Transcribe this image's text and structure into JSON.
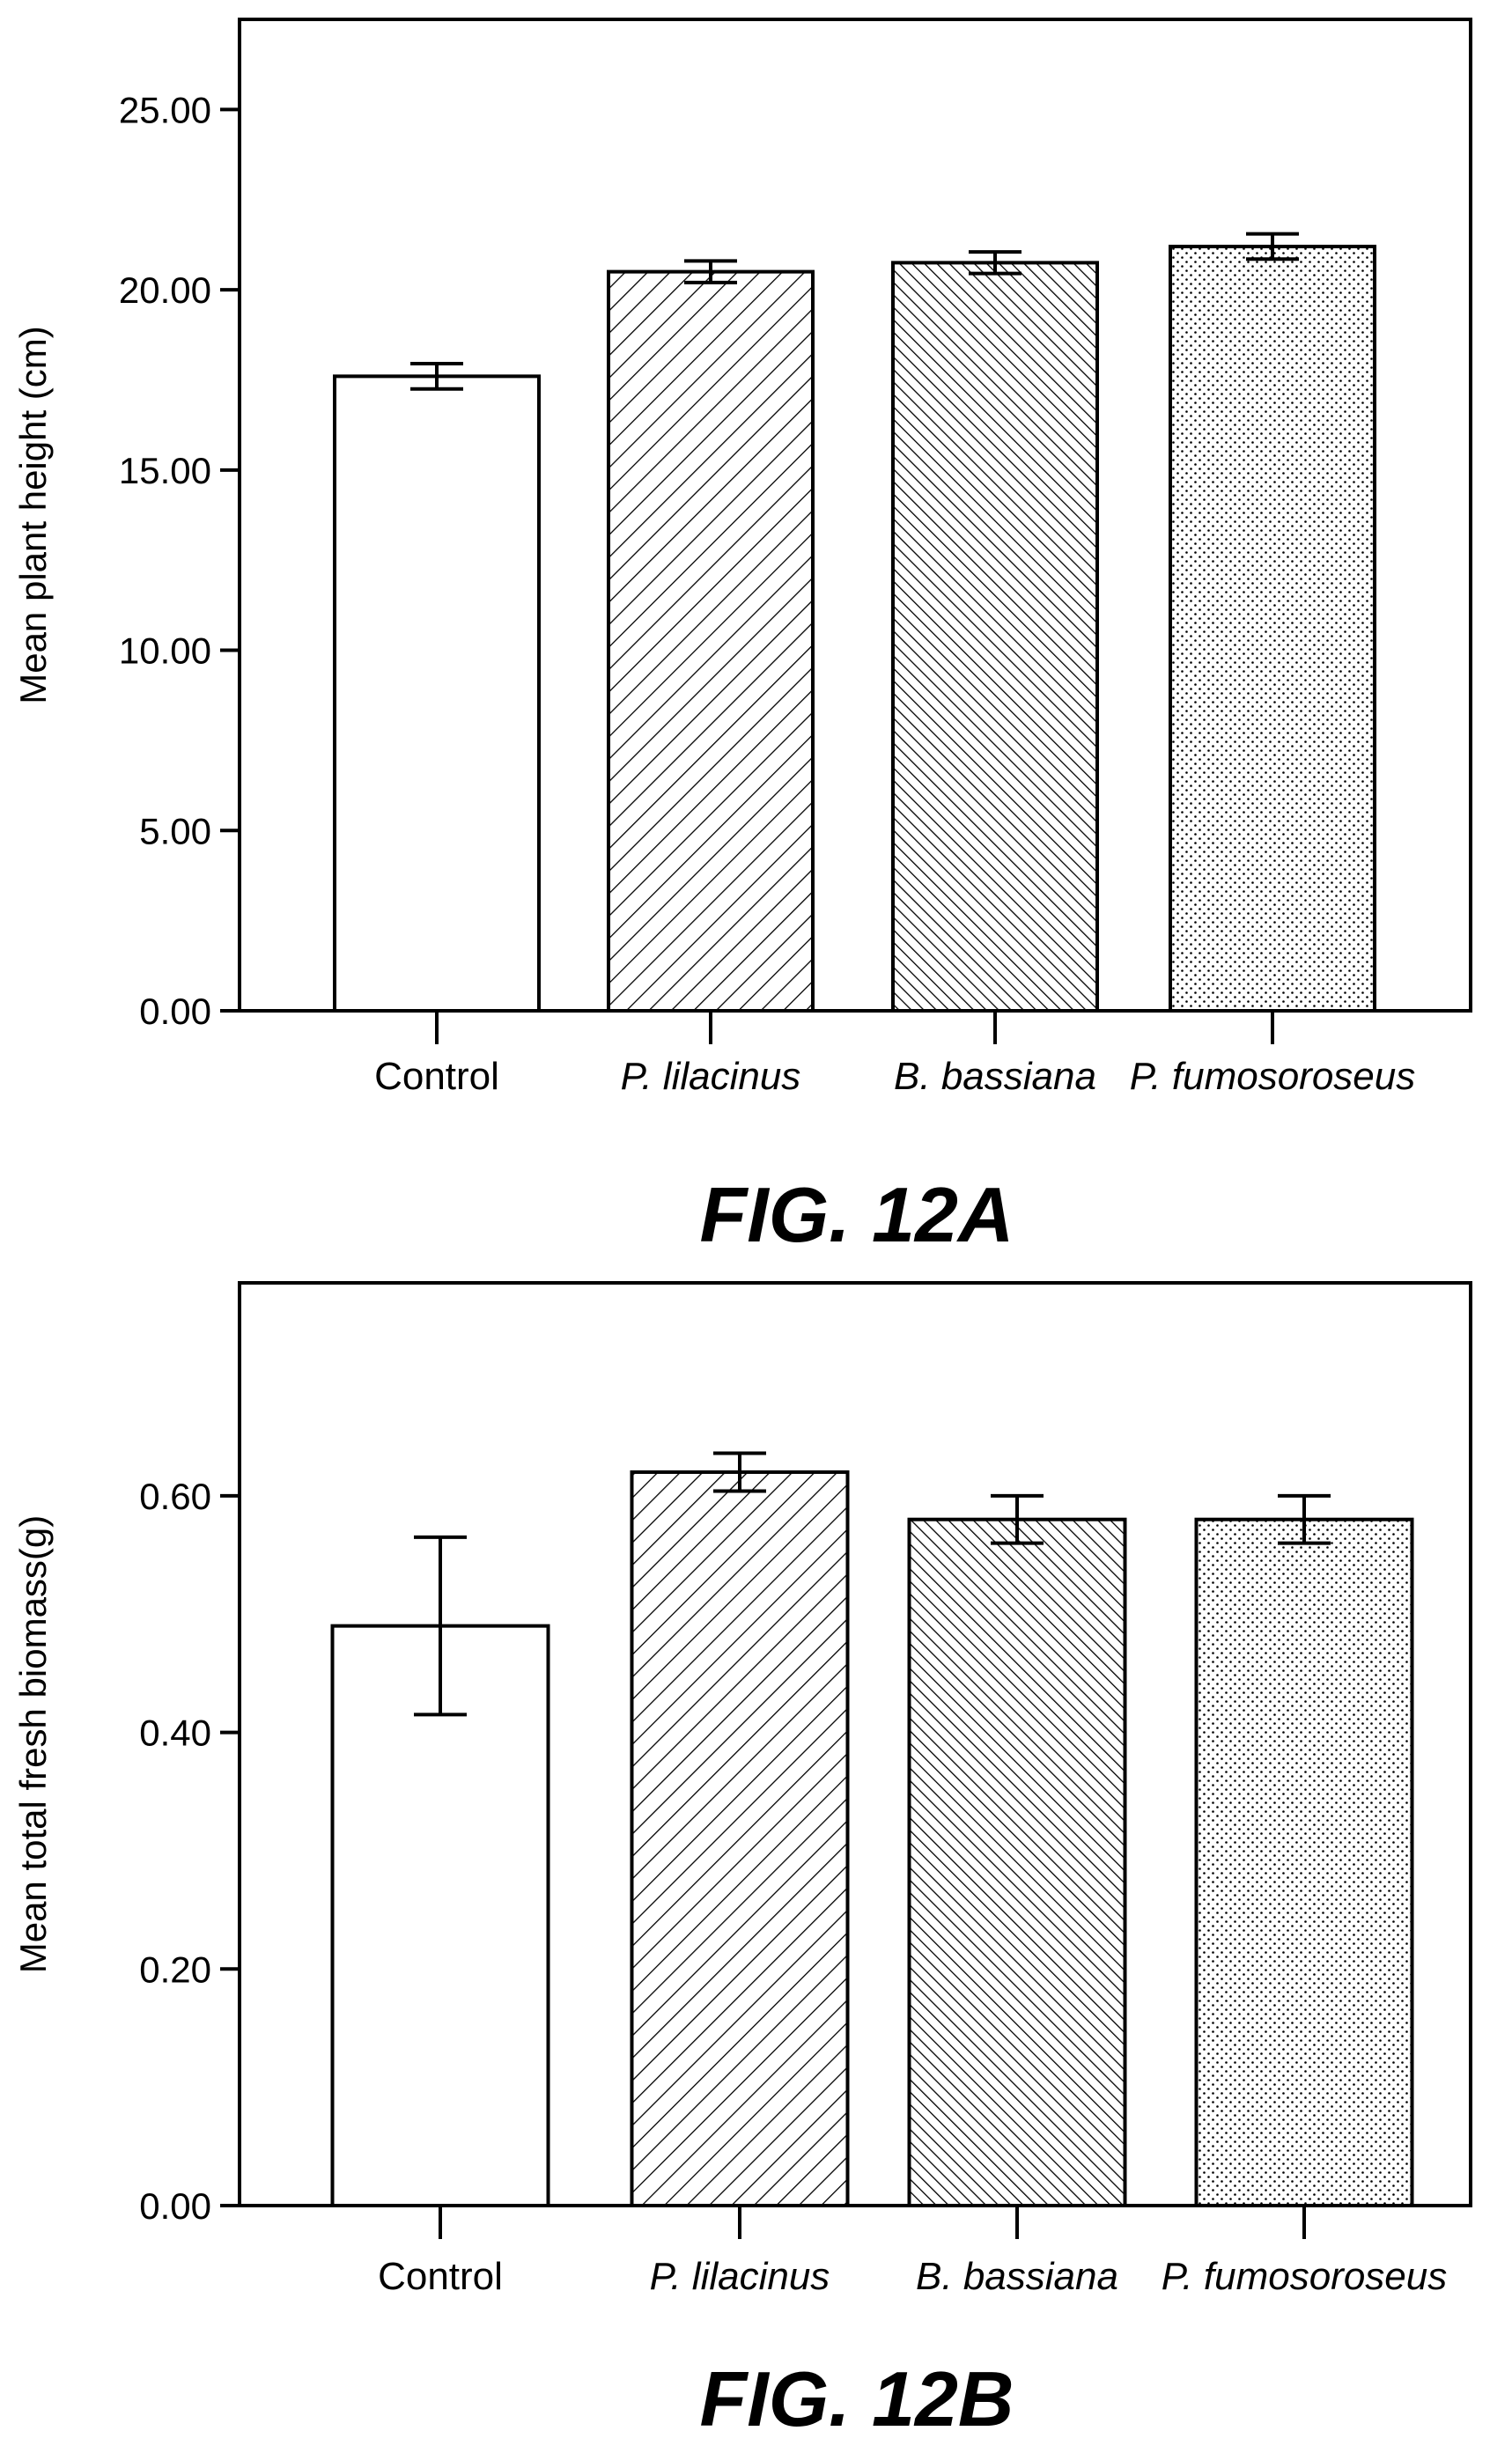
{
  "chart_data": [
    {
      "type": "bar",
      "figure_label": "FIG. 12A",
      "ylabel": "Mean plant height (cm)",
      "xlabel": "",
      "ylim": [
        0,
        27.5
      ],
      "yticks": [
        "0.00",
        "5.00",
        "10.00",
        "15.00",
        "20.00",
        "25.00"
      ],
      "yticks_values": [
        0,
        5,
        10,
        15,
        20,
        25
      ],
      "categories": [
        "Control",
        "P. lilacinus",
        "B. bassiana",
        "P. fumosoroseus"
      ],
      "italic": [
        false,
        true,
        true,
        true
      ],
      "patterns": [
        "none",
        "diag-wide",
        "diag-dense",
        "dots"
      ],
      "values": [
        17.6,
        20.5,
        20.75,
        21.2
      ],
      "errors": [
        0.35,
        0.3,
        0.3,
        0.35
      ],
      "grid": false
    },
    {
      "type": "bar",
      "figure_label": "FIG. 12B",
      "ylabel": "Mean total fresh biomass(g)",
      "xlabel": "",
      "ylim": [
        0,
        0.78
      ],
      "yticks": [
        "0.00",
        "0.20",
        "0.40",
        "0.60"
      ],
      "yticks_values": [
        0,
        0.2,
        0.4,
        0.6
      ],
      "categories": [
        "Control",
        "P. lilacinus",
        "B. bassiana",
        "P. fumosoroseus"
      ],
      "italic": [
        false,
        true,
        true,
        true
      ],
      "patterns": [
        "none",
        "diag-wide",
        "diag-dense",
        "dots"
      ],
      "values": [
        0.49,
        0.62,
        0.58,
        0.58
      ],
      "errors": [
        0.075,
        0.016,
        0.02,
        0.02
      ],
      "grid": false
    }
  ]
}
